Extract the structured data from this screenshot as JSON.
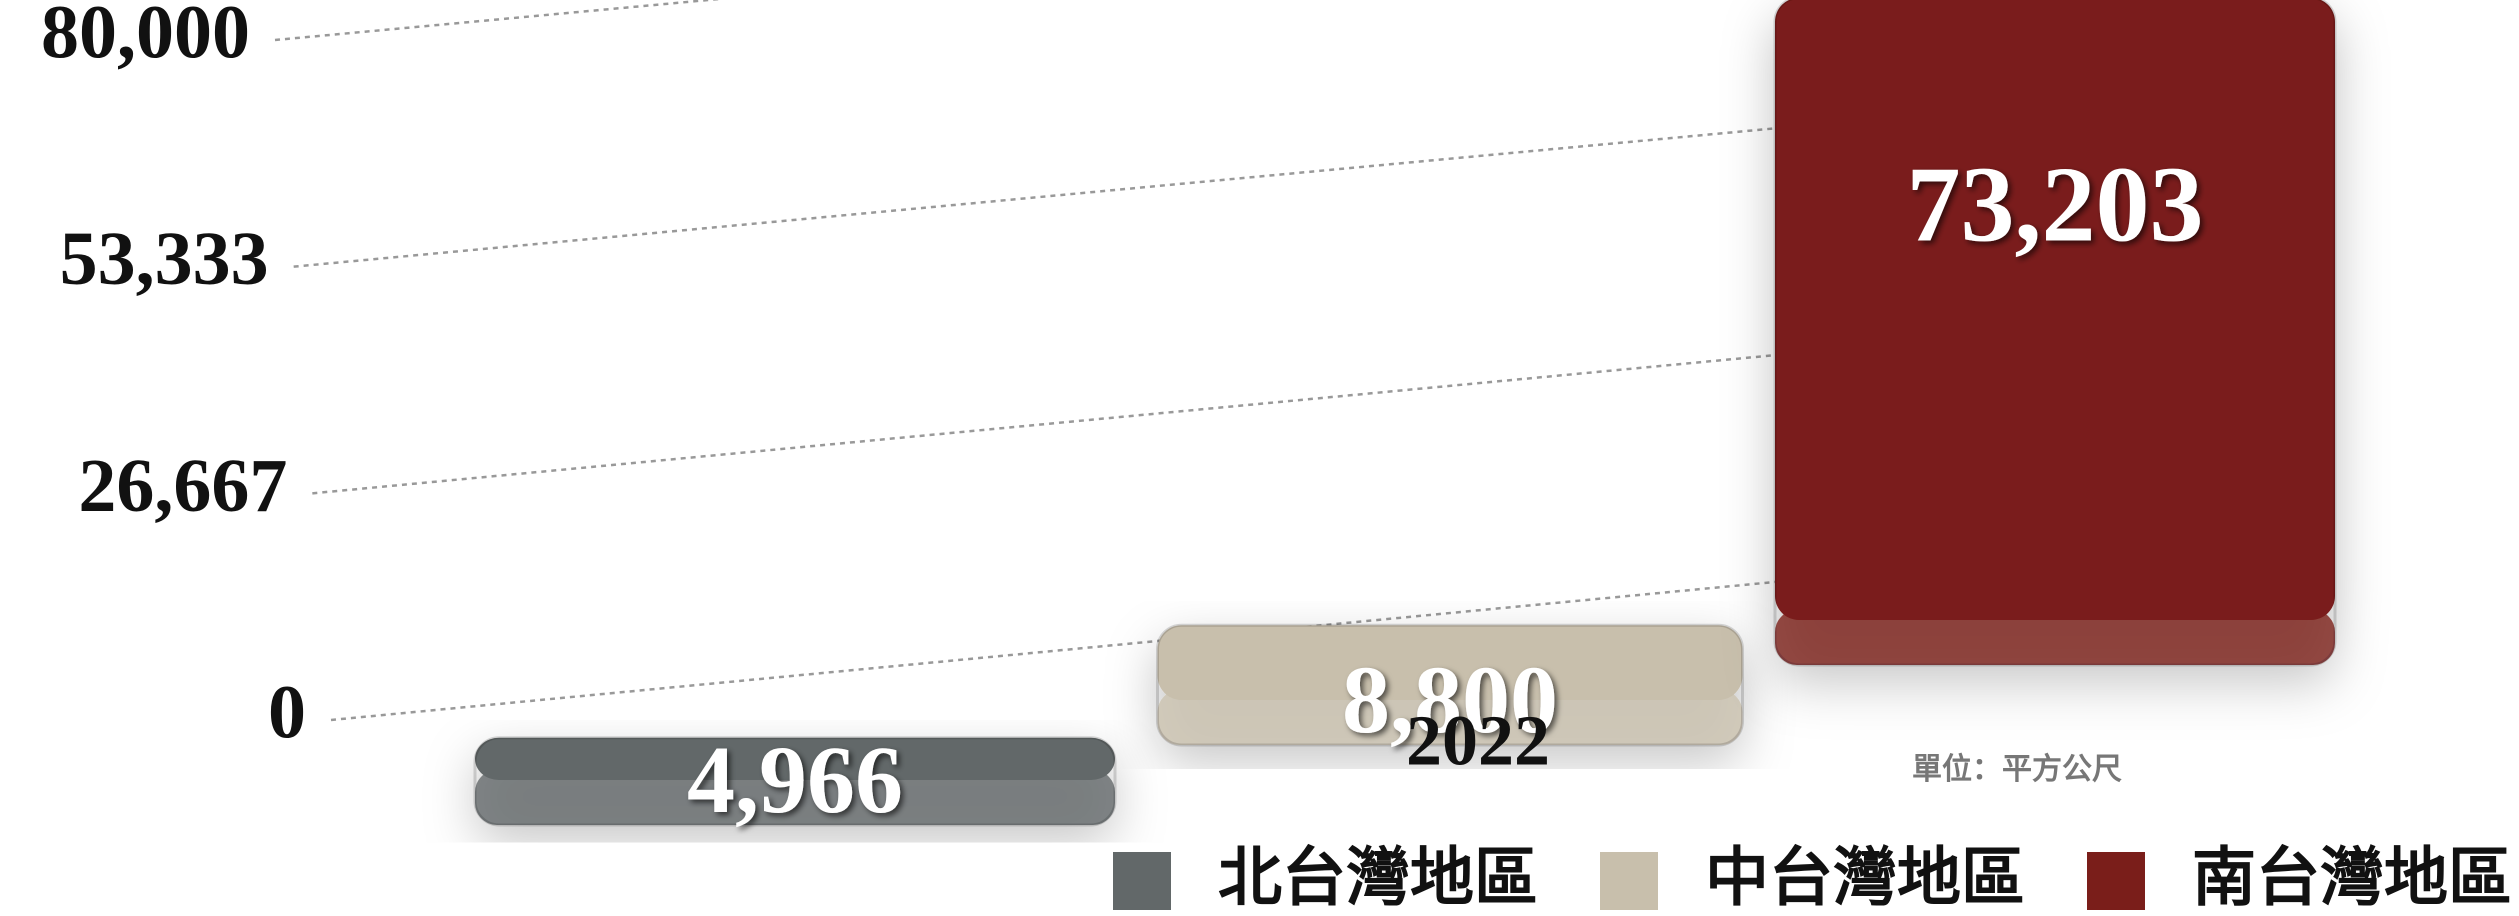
{
  "chart_data": {
    "type": "bar",
    "categories": [
      "2022"
    ],
    "series": [
      {
        "name": "北台灣地區",
        "color": "#626869",
        "values": [
          4966
        ],
        "value_labels": [
          "4,966"
        ]
      },
      {
        "name": "中台灣地區",
        "color": "#c8bfac",
        "values": [
          8800
        ],
        "value_labels": [
          "8,800"
        ]
      },
      {
        "name": "南台灣地區",
        "color": "#7a1e1a",
        "values": [
          73203
        ],
        "value_labels": [
          "73,203"
        ]
      }
    ],
    "ylim": [
      0,
      80000
    ],
    "yticks": [
      0,
      {
        "value": 26667,
        "label": "26,667"
      },
      {
        "value": 53333,
        "label": "53,333"
      },
      {
        "value": 80000,
        "label": "80,000"
      }
    ],
    "grid": true,
    "annotations": [
      "單位：平方公尺"
    ]
  }
}
